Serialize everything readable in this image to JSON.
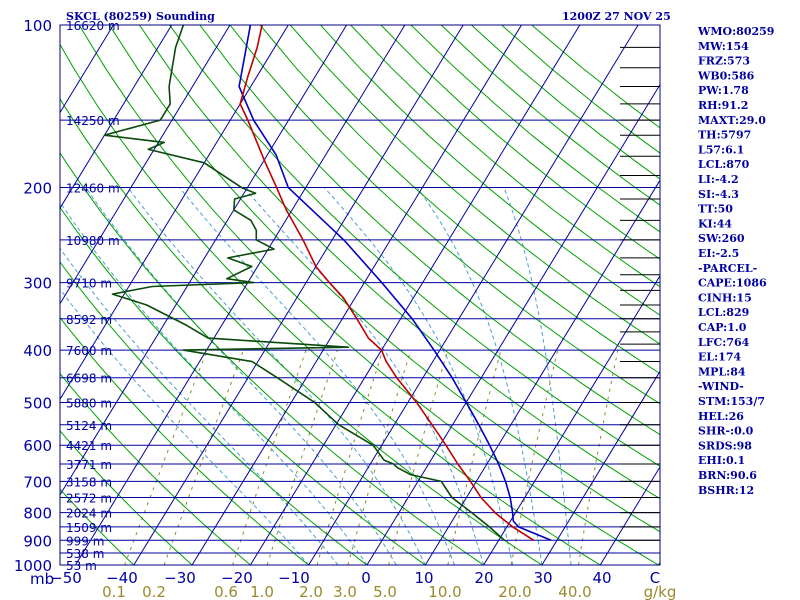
{
  "title_left": "SKCL (80259) Sounding",
  "title_right": "1200Z 27 NOV 25",
  "indices": [
    "WMO:80259",
    "MW:154",
    "FRZ:573",
    "WB0:586",
    "PW:1.78",
    "RH:91.2",
    "MAXT:29.0",
    "TH:5797",
    "L57:6.1",
    "LCL:870",
    "LI:-4.2",
    "SI:-4.3",
    "TT:50",
    "KI:44",
    "SW:260",
    "EI:-2.5",
    "-PARCEL-",
    "CAPE:1086",
    "CINH:15",
    "LCL:829",
    "CAP:1.0",
    "LFC:764",
    "EL:174",
    "MPL:84",
    "-WIND-",
    "STM:153/7",
    "HEL:26",
    "SHR-:0.0",
    "SRDS:98",
    "EHI:0.1",
    "BRN:90.6",
    "BSHR:12"
  ],
  "colors": {
    "temperature": "#c00000",
    "dewpoint": "#0a4a0a",
    "parcel": "#0000c0",
    "isobar": "#0000a0",
    "isotherm": "#0000a0",
    "dry_adiabat": "#00a000",
    "moist_adiabat": "#4aa0d0",
    "mixing_ratio": "#8a8a30"
  },
  "chart_data": {
    "type": "line",
    "title": "SKCL (80259) Sounding",
    "xlabel": "",
    "ylabel": "mb",
    "x_units": "°C",
    "y_units": "mb",
    "scale_y": "log-pressure",
    "skew": true,
    "xlim": [
      -50,
      50
    ],
    "ylim": [
      1000,
      100
    ],
    "pressure_ticks": [
      100,
      200,
      300,
      400,
      500,
      600,
      700,
      800,
      900,
      1000
    ],
    "pressure_tick_labels": [
      "100",
      "200",
      "300",
      "400",
      "500",
      "600",
      "700",
      "800",
      "900",
      "1000"
    ],
    "temperature_ticks": [
      -40,
      -30,
      -20,
      -10,
      0,
      10,
      20,
      30,
      40
    ],
    "temperature_tick_labels": [
      "−40",
      "−30",
      "−20",
      "−10",
      "0",
      "10",
      "20",
      "30",
      "40"
    ],
    "height_labels": [
      {
        "p": 100,
        "label": "16620 m"
      },
      {
        "p": 150,
        "label": "14250 m"
      },
      {
        "p": 200,
        "label": "12460 m"
      },
      {
        "p": 250,
        "label": "10980 m"
      },
      {
        "p": 300,
        "label": "9710 m"
      },
      {
        "p": 350,
        "label": "8592 m"
      },
      {
        "p": 400,
        "label": "7600 m"
      },
      {
        "p": 450,
        "label": "6698 m"
      },
      {
        "p": 500,
        "label": "5880 m"
      },
      {
        "p": 550,
        "label": "5124 m"
      },
      {
        "p": 600,
        "label": "4421 m"
      },
      {
        "p": 650,
        "label": "3771 m"
      },
      {
        "p": 700,
        "label": "3158 m"
      },
      {
        "p": 750,
        "label": "2572 m"
      },
      {
        "p": 800,
        "label": "2024 m"
      },
      {
        "p": 850,
        "label": "1509 m"
      },
      {
        "p": 900,
        "label": "999 m"
      },
      {
        "p": 950,
        "label": "538 m"
      },
      {
        "p": 1000,
        "label": "53 m"
      }
    ],
    "mixing_ratio_labels": [
      "0.1",
      "0.2",
      "0.6",
      "1.0",
      "2.0",
      "3.0",
      "5.0",
      "10.0",
      "20.0",
      "40.0",
      "g/kg"
    ],
    "series": [
      {
        "name": "",
        "role": "temperature",
        "p": [
          900,
          850,
          800,
          750,
          700,
          650,
          600,
          550,
          500,
          450,
          420,
          400,
          380,
          350,
          320,
          300,
          280,
          250,
          220,
          200,
          180,
          150,
          140,
          125,
          110,
          100
        ],
        "t": [
          26.0,
          21.0,
          16.5,
          12.5,
          9.0,
          5.0,
          1.0,
          -3.5,
          -8.5,
          -14.5,
          -18.0,
          -20.0,
          -23.5,
          -27.5,
          -32.0,
          -36.0,
          -40.0,
          -45.0,
          -51.0,
          -55.0,
          -59.5,
          -67.0,
          -70.0,
          -71.5,
          -73.0,
          -74.5
        ]
      },
      {
        "name": "",
        "role": "dewpoint",
        "p": [
          900,
          850,
          800,
          750,
          700,
          680,
          660,
          650,
          640,
          600,
          550,
          500,
          450,
          420,
          400,
          395,
          380,
          360,
          330,
          315,
          305,
          300,
          295,
          280,
          270,
          260,
          250,
          240,
          230,
          220,
          210,
          205,
          200,
          180,
          170,
          165,
          160,
          150,
          140,
          130,
          110,
          100
        ],
        "td": [
          21.0,
          17.0,
          12.5,
          7.5,
          4.0,
          -2.0,
          -5.0,
          -6.0,
          -8.0,
          -11.5,
          -19.5,
          -26.0,
          -35.0,
          -41.0,
          -54.0,
          -26.0,
          -51.0,
          -56.0,
          -65.0,
          -72.0,
          -66.0,
          -49.0,
          -54.0,
          -51.0,
          -56.0,
          -49.0,
          -53.0,
          -54.0,
          -56.0,
          -60.0,
          -61.0,
          -58.0,
          -61.0,
          -70.0,
          -81.0,
          -79.0,
          -90.0,
          -82.0,
          -82.0,
          -84.0,
          -87.0,
          -88.0
        ]
      },
      {
        "name": "",
        "role": "parcel",
        "p": [
          900,
          850,
          829,
          800,
          750,
          700,
          650,
          600,
          550,
          500,
          450,
          400,
          350,
          300,
          250,
          200,
          174,
          150,
          130,
          100
        ],
        "t": [
          29.0,
          22.0,
          20.5,
          19.5,
          17.5,
          15.0,
          12.0,
          8.5,
          4.5,
          0.0,
          -5.0,
          -11.0,
          -18.0,
          -27.0,
          -38.0,
          -53.0,
          -58.5,
          -66.0,
          -72.0,
          -76.5
        ]
      }
    ]
  }
}
